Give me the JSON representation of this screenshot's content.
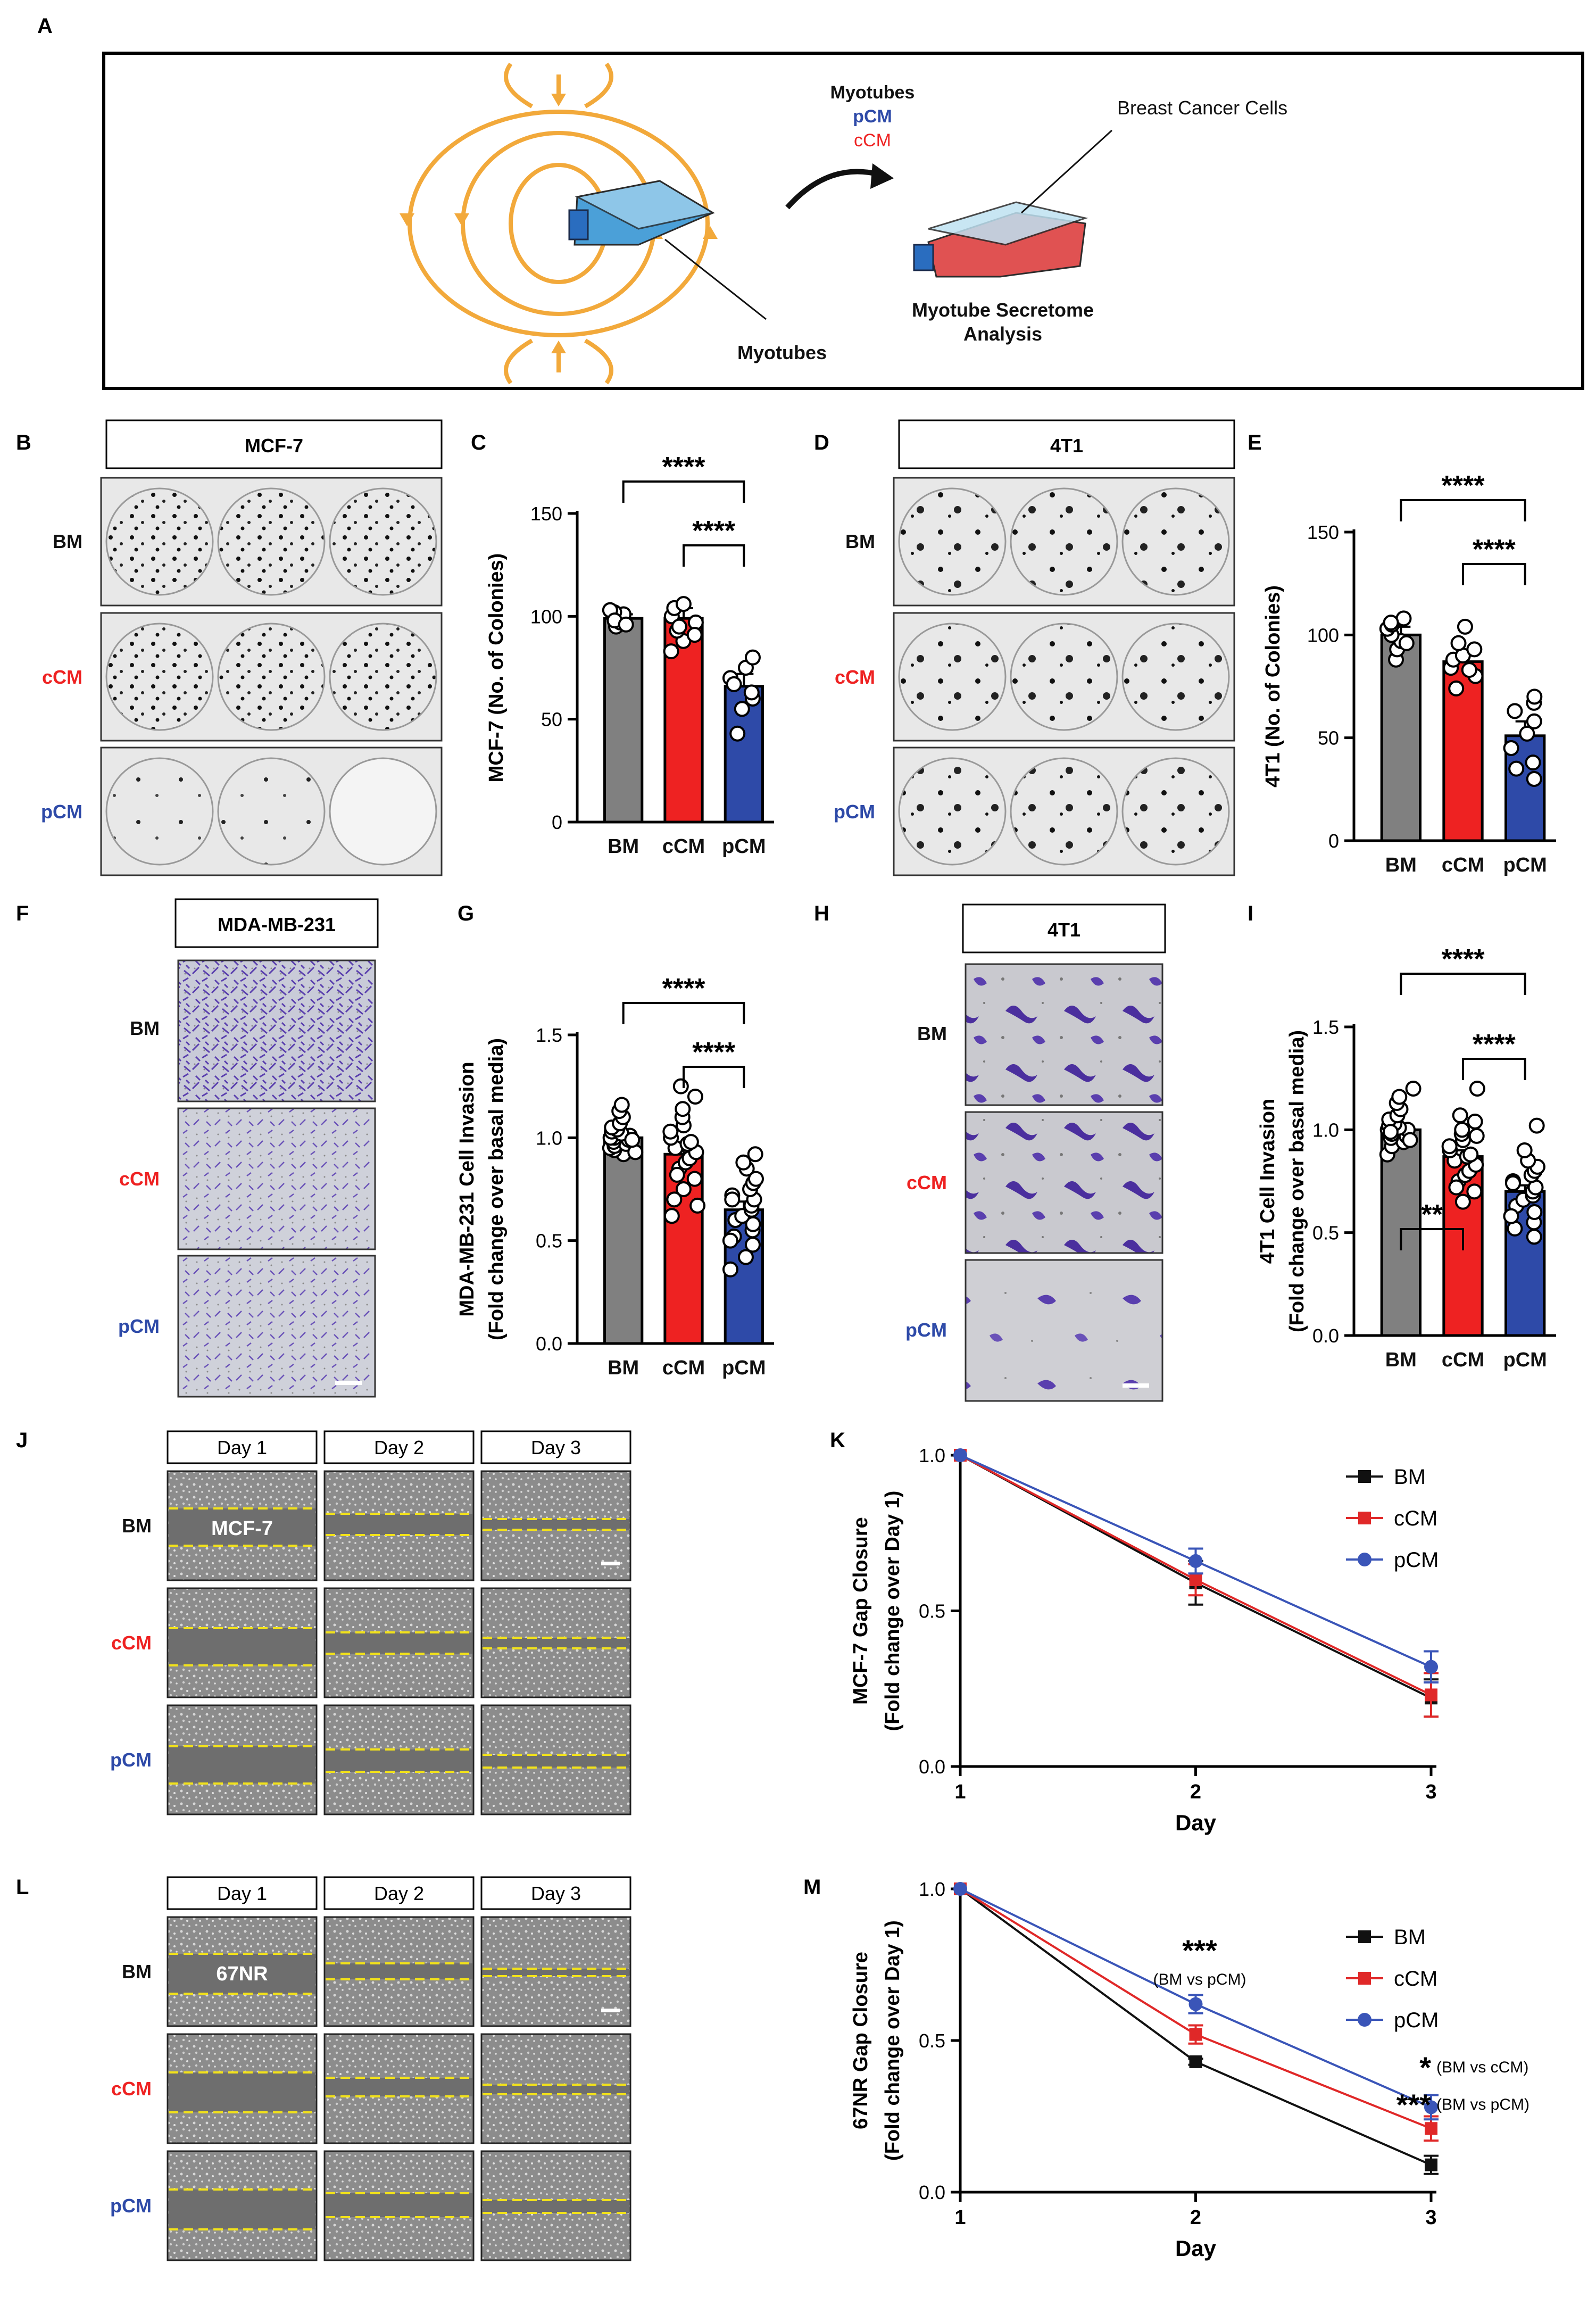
{
  "panel_letters": {
    "A": "A",
    "B": "B",
    "C": "C",
    "D": "D",
    "E": "E",
    "F": "F",
    "G": "G",
    "H": "H",
    "I": "I",
    "J": "J",
    "K": "K",
    "L": "L",
    "M": "M"
  },
  "colors": {
    "BM": "#808080",
    "cCM": "#ee2222",
    "pCM": "#2e4aa8",
    "line_BM": "#111111",
    "line_cCM": "#e02828",
    "line_pCM": "#3a55b8",
    "schematic_arrows": "#f2a93b"
  },
  "schematic": {
    "myotubes_header": "Myotubes",
    "pcm": "pCM",
    "ccm": "cCM",
    "breast_cancer_cells": "Breast Cancer Cells",
    "myotubes_label": "Myotubes",
    "analysis_line1": "Myotube Secretome",
    "analysis_line2": "Analysis"
  },
  "groups": [
    "BM",
    "cCM",
    "pCM"
  ],
  "image_panels": {
    "B": {
      "title": "MCF-7"
    },
    "D": {
      "title": "4T1"
    },
    "F": {
      "title": "MDA-MB-231"
    },
    "H": {
      "title": "4T1"
    },
    "J": {
      "days": [
        "Day 1",
        "Day 2",
        "Day 3"
      ],
      "cell_label": "MCF-7"
    },
    "L": {
      "days": [
        "Day 1",
        "Day 2",
        "Day 3"
      ],
      "cell_label": "67NR"
    }
  },
  "chart_data": [
    {
      "panel": "C",
      "type": "bar",
      "categories": [
        "BM",
        "cCM",
        "pCM"
      ],
      "values": [
        99,
        99,
        66
      ],
      "errors": [
        2,
        5,
        6
      ],
      "points": [
        [
          95,
          97,
          99,
          100,
          101,
          102,
          103,
          98,
          96
        ],
        [
          83,
          88,
          93,
          97,
          100,
          104,
          106,
          91,
          95
        ],
        [
          43,
          55,
          60,
          63,
          70,
          75,
          80,
          67
        ]
      ],
      "ylabel": "MCF-7 (No. of Colonies)",
      "ylim": [
        0,
        150
      ],
      "yticks": [
        0,
        50,
        100,
        150
      ],
      "ytick_labels": [
        "0",
        "50",
        "100",
        "150"
      ],
      "significance": [
        {
          "from": "BM",
          "to": "pCM",
          "label": "****"
        },
        {
          "from": "cCM",
          "to": "pCM",
          "label": "****"
        }
      ]
    },
    {
      "panel": "E",
      "type": "bar",
      "categories": [
        "BM",
        "cCM",
        "pCM"
      ],
      "values": [
        100,
        87,
        51
      ],
      "errors": [
        4,
        4,
        7
      ],
      "points": [
        [
          88,
          93,
          97,
          100,
          103,
          105,
          108,
          106,
          96
        ],
        [
          74,
          80,
          84,
          88,
          90,
          93,
          96,
          104,
          83
        ],
        [
          30,
          38,
          45,
          52,
          58,
          63,
          67,
          70,
          35
        ]
      ],
      "ylabel": "4T1 (No. of Colonies)",
      "ylim": [
        0,
        150
      ],
      "yticks": [
        0,
        50,
        100,
        150
      ],
      "ytick_labels": [
        "0",
        "50",
        "100",
        "150"
      ],
      "significance": [
        {
          "from": "BM",
          "to": "pCM",
          "label": "****"
        },
        {
          "from": "cCM",
          "to": "pCM",
          "label": "****"
        }
      ]
    },
    {
      "panel": "G",
      "type": "bar",
      "categories": [
        "BM",
        "cCM",
        "pCM"
      ],
      "values": [
        1.0,
        0.92,
        0.65
      ],
      "errors": [
        0.02,
        0.04,
        0.04
      ],
      "points": [
        [
          0.92,
          0.94,
          0.95,
          0.96,
          0.97,
          0.98,
          0.99,
          1.0,
          1.0,
          1.01,
          1.02,
          1.03,
          1.04,
          1.05,
          1.07,
          1.1,
          1.13,
          1.16,
          0.93,
          0.99
        ],
        [
          0.62,
          0.7,
          0.75,
          0.8,
          0.85,
          0.88,
          0.9,
          0.93,
          0.95,
          0.97,
          1.0,
          1.03,
          1.06,
          1.1,
          1.14,
          1.2,
          1.25,
          0.67,
          0.82,
          0.98
        ],
        [
          0.36,
          0.42,
          0.48,
          0.52,
          0.55,
          0.58,
          0.6,
          0.62,
          0.65,
          0.67,
          0.7,
          0.72,
          0.75,
          0.78,
          0.8,
          0.85,
          0.88,
          0.92,
          0.5,
          0.7
        ]
      ],
      "ylabel_line1": "MDA-MB-231 Cell Invasion",
      "ylabel_line2": "(Fold change over basal media)",
      "ylim": [
        0,
        1.5
      ],
      "yticks": [
        0,
        0.5,
        1.0,
        1.5
      ],
      "ytick_labels": [
        "0.0",
        "0.5",
        "1.0",
        "1.5"
      ],
      "significance": [
        {
          "from": "BM",
          "to": "pCM",
          "label": "****"
        },
        {
          "from": "cCM",
          "to": "pCM",
          "label": "****"
        }
      ]
    },
    {
      "panel": "I",
      "type": "bar",
      "categories": [
        "BM",
        "cCM",
        "pCM"
      ],
      "values": [
        1.0,
        0.87,
        0.7
      ],
      "errors": [
        0.02,
        0.03,
        0.03
      ],
      "points": [
        [
          0.88,
          0.92,
          0.94,
          0.96,
          0.97,
          0.98,
          1.0,
          1.0,
          1.01,
          1.02,
          1.03,
          1.05,
          1.07,
          1.1,
          1.13,
          1.16,
          1.2,
          0.95,
          0.99
        ],
        [
          0.65,
          0.7,
          0.75,
          0.78,
          0.8,
          0.83,
          0.85,
          0.87,
          0.9,
          0.92,
          0.95,
          0.98,
          1.0,
          1.04,
          1.07,
          1.2,
          0.72,
          0.88,
          0.97
        ],
        [
          0.48,
          0.52,
          0.55,
          0.6,
          0.63,
          0.66,
          0.68,
          0.7,
          0.72,
          0.75,
          0.78,
          0.8,
          0.82,
          0.85,
          0.9,
          1.02,
          0.58,
          0.74
        ]
      ],
      "ylabel_line1": "4T1 Cell Invasion",
      "ylabel_line2": "(Fold change over basal media)",
      "ylim": [
        0,
        1.5
      ],
      "yticks": [
        0,
        0.5,
        1.0,
        1.5
      ],
      "ytick_labels": [
        "0.0",
        "0.5",
        "1.0",
        "1.5"
      ],
      "significance": [
        {
          "from": "BM",
          "to": "pCM",
          "label": "****"
        },
        {
          "from": "cCM",
          "to": "pCM",
          "label": "****"
        },
        {
          "from": "BM",
          "to": "cCM",
          "label": "**"
        }
      ]
    },
    {
      "panel": "K",
      "type": "line",
      "x": [
        1,
        2,
        3
      ],
      "xticks": [
        "1",
        "2",
        "3"
      ],
      "xlabel": "Day",
      "ylabel_line1": "MCF-7 Gap Closure",
      "ylabel_line2": "(Fold change over Day 1)",
      "ylim": [
        0,
        1.0
      ],
      "yticks": [
        0,
        0.5,
        1.0
      ],
      "ytick_labels": [
        "0.0",
        "0.5",
        "1.0"
      ],
      "series": [
        {
          "name": "BM",
          "values": [
            1.0,
            0.59,
            0.22
          ],
          "errors": [
            0,
            0.07,
            0.06
          ],
          "marker": "square"
        },
        {
          "name": "cCM",
          "values": [
            1.0,
            0.6,
            0.23
          ],
          "errors": [
            0,
            0.05,
            0.07
          ],
          "marker": "square"
        },
        {
          "name": "pCM",
          "values": [
            1.0,
            0.66,
            0.32
          ],
          "errors": [
            0,
            0.04,
            0.05
          ],
          "marker": "circle"
        }
      ]
    },
    {
      "panel": "M",
      "type": "line",
      "x": [
        1,
        2,
        3
      ],
      "xticks": [
        "1",
        "2",
        "3"
      ],
      "xlabel": "Day",
      "ylabel_line1": "67NR Gap Closure",
      "ylabel_line2": "(Fold change over Day 1)",
      "ylim": [
        0,
        1.0
      ],
      "yticks": [
        0,
        0.5,
        1.0
      ],
      "ytick_labels": [
        "0.0",
        "0.5",
        "1.0"
      ],
      "series": [
        {
          "name": "BM",
          "values": [
            1.0,
            0.43,
            0.09
          ],
          "errors": [
            0,
            0.01,
            0.03
          ],
          "marker": "square"
        },
        {
          "name": "cCM",
          "values": [
            1.0,
            0.52,
            0.21
          ],
          "errors": [
            0,
            0.03,
            0.04
          ],
          "marker": "square"
        },
        {
          "name": "pCM",
          "values": [
            1.0,
            0.62,
            0.28
          ],
          "errors": [
            0,
            0.03,
            0.04
          ],
          "marker": "circle"
        }
      ],
      "annotations": [
        {
          "stars": "***",
          "text": "(BM vs pCM)"
        },
        {
          "stars": "*",
          "text": "(BM vs cCM)"
        },
        {
          "stars": "***",
          "text": "(BM vs pCM)"
        }
      ]
    }
  ]
}
